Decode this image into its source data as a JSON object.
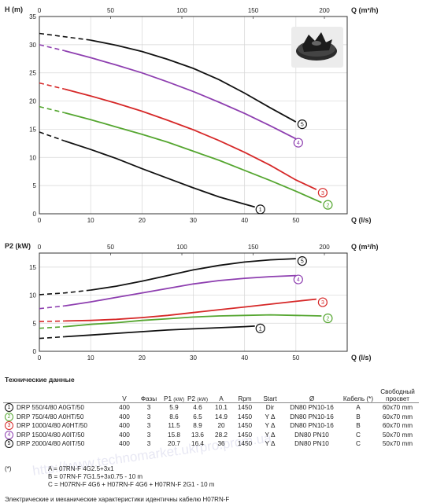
{
  "chart_data": [
    {
      "type": "line",
      "title": "",
      "ylabel": "H (m)",
      "xlabel": "Q (l/s)",
      "x2label": "Q (m³/h)",
      "xlim": [
        0,
        60
      ],
      "ylim": [
        0,
        35
      ],
      "x_ticks": [
        0,
        10,
        20,
        30,
        40,
        50
      ],
      "x2_ticks": [
        0,
        50,
        100,
        150,
        200
      ],
      "y_ticks": [
        0,
        5,
        10,
        15,
        20,
        25,
        30,
        35
      ],
      "grid": true,
      "series": [
        {
          "name": "1",
          "color": "#111111",
          "dashed_until": 1.5,
          "x": [
            0,
            5,
            10,
            15,
            20,
            25,
            30,
            35,
            40,
            42
          ],
          "y": [
            14.5,
            12.9,
            11.4,
            9.8,
            8.0,
            6.3,
            4.6,
            3.0,
            1.7,
            1.2
          ]
        },
        {
          "name": "2",
          "color": "#55a630",
          "dashed_until": 1.5,
          "x": [
            0,
            5,
            10,
            15,
            20,
            25,
            30,
            35,
            40,
            45,
            50,
            55
          ],
          "y": [
            19.0,
            17.9,
            16.7,
            15.4,
            14.1,
            12.7,
            11.1,
            9.5,
            7.7,
            5.9,
            4.0,
            2.0
          ]
        },
        {
          "name": "3",
          "color": "#d62828",
          "dashed_until": 1.5,
          "x": [
            0,
            5,
            10,
            15,
            20,
            25,
            30,
            35,
            40,
            45,
            50,
            54
          ],
          "y": [
            23.2,
            22.1,
            20.9,
            19.6,
            18.2,
            16.6,
            14.9,
            13.0,
            10.9,
            8.6,
            6.0,
            4.3
          ]
        },
        {
          "name": "4",
          "color": "#8e3fb0",
          "dashed_until": 3,
          "x": [
            0,
            5,
            10,
            15,
            20,
            25,
            30,
            35,
            40,
            45,
            50
          ],
          "y": [
            30.0,
            28.9,
            27.7,
            26.4,
            25.0,
            23.4,
            21.7,
            19.8,
            17.8,
            15.6,
            13.3
          ]
        },
        {
          "name": "5",
          "color": "#111111",
          "dashed_until": 5,
          "x": [
            0,
            5,
            10,
            15,
            20,
            25,
            30,
            35,
            40,
            45,
            50
          ],
          "y": [
            32.0,
            31.4,
            30.8,
            29.9,
            28.8,
            27.4,
            25.8,
            23.8,
            21.4,
            18.8,
            16.3
          ]
        }
      ]
    },
    {
      "type": "line",
      "title": "",
      "ylabel": "P2 (kW)",
      "xlabel": "Q (l/s)",
      "x2label": "Q (m³/h)",
      "xlim": [
        0,
        60
      ],
      "ylim": [
        0,
        17.5
      ],
      "x_ticks": [
        0,
        10,
        20,
        30,
        40,
        50
      ],
      "x2_ticks": [
        0,
        50,
        100,
        150,
        200
      ],
      "y_ticks": [
        0,
        5,
        10,
        15
      ],
      "grid": true,
      "series": [
        {
          "name": "1",
          "color": "#111111",
          "dashed_until": 1.5,
          "x": [
            0,
            5,
            10,
            15,
            20,
            25,
            30,
            35,
            40,
            42
          ],
          "y": [
            2.3,
            2.6,
            2.9,
            3.2,
            3.5,
            3.8,
            4.0,
            4.2,
            4.4,
            4.5
          ]
        },
        {
          "name": "2",
          "color": "#55a630",
          "dashed_until": 1.5,
          "x": [
            0,
            5,
            10,
            15,
            20,
            25,
            30,
            35,
            40,
            45,
            50,
            55
          ],
          "y": [
            4.1,
            4.4,
            4.8,
            5.1,
            5.5,
            5.8,
            6.1,
            6.3,
            6.4,
            6.5,
            6.4,
            6.3
          ]
        },
        {
          "name": "3",
          "color": "#d62828",
          "dashed_until": 1.5,
          "x": [
            0,
            5,
            10,
            15,
            20,
            25,
            30,
            35,
            40,
            45,
            50,
            54
          ],
          "y": [
            5.3,
            5.4,
            5.5,
            5.7,
            6.0,
            6.4,
            6.9,
            7.4,
            7.9,
            8.4,
            8.9,
            9.3
          ]
        },
        {
          "name": "4",
          "color": "#8e3fb0",
          "dashed_until": 3,
          "x": [
            0,
            5,
            10,
            15,
            20,
            25,
            30,
            35,
            40,
            45,
            50
          ],
          "y": [
            7.6,
            8.1,
            8.8,
            9.6,
            10.4,
            11.2,
            12.0,
            12.6,
            13.0,
            13.3,
            13.5
          ]
        },
        {
          "name": "5",
          "color": "#111111",
          "dashed_until": 5,
          "x": [
            0,
            5,
            10,
            15,
            20,
            25,
            30,
            35,
            40,
            45,
            50
          ],
          "y": [
            10.1,
            10.4,
            10.9,
            11.6,
            12.5,
            13.5,
            14.5,
            15.3,
            15.9,
            16.3,
            16.5
          ]
        }
      ]
    }
  ],
  "table": {
    "title": "Технические данные",
    "headers": {
      "v": "V",
      "phases": "Фазы",
      "p1": "P1",
      "p1_unit": "(kW)",
      "p2": "P2",
      "p2_unit": "(kW)",
      "a": "A",
      "rpm": "Rpm",
      "start": "Start",
      "dn": "Ø",
      "cable": "Кабель (*)",
      "opening": "Свободный просвет"
    },
    "rows": [
      {
        "num": "1",
        "color": "#111111",
        "model": "DRP 550/4/80 A0GT/50",
        "v": "400",
        "phases": "3",
        "p1": "5.9",
        "p2": "4.6",
        "a": "10.1",
        "rpm": "1450",
        "start": "Dir",
        "dn": "DN80 PN10-16",
        "cable": "A",
        "opening": "60x70 mm"
      },
      {
        "num": "2",
        "color": "#55a630",
        "model": "DRP 750/4/80 A0HT/50",
        "v": "400",
        "phases": "3",
        "p1": "8.6",
        "p2": "6.5",
        "a": "14.9",
        "rpm": "1450",
        "start": "Y Δ",
        "dn": "DN80 PN10-16",
        "cable": "B",
        "opening": "60x70 mm"
      },
      {
        "num": "3",
        "color": "#d62828",
        "model": "DRP 1000/4/80 A0HT/50",
        "v": "400",
        "phases": "3",
        "p1": "11.5",
        "p2": "8.9",
        "a": "20",
        "rpm": "1450",
        "start": "Y Δ",
        "dn": "DN80 PN10-16",
        "cable": "B",
        "opening": "60x70 mm"
      },
      {
        "num": "4",
        "color": "#8e3fb0",
        "model": "DRP 1500/4/80 A0IT/50",
        "v": "400",
        "phases": "3",
        "p1": "15.8",
        "p2": "13.6",
        "a": "28.2",
        "rpm": "1450",
        "start": "Y Δ",
        "dn": "DN80 PN10",
        "cable": "C",
        "opening": "50x70 mm"
      },
      {
        "num": "5",
        "color": "#111111",
        "model": "DRP 2000/4/80 A0IT/50",
        "v": "400",
        "phases": "3",
        "p1": "20.7",
        "p2": "16.4",
        "a": "36",
        "rpm": "1450",
        "start": "Y Δ",
        "dn": "DN80 PN10",
        "cable": "C",
        "opening": "50x70 mm"
      }
    ]
  },
  "notes": {
    "star": "(*)",
    "a": "A = 07RN-F 4G2.5+3x1",
    "b": "B = 07RN-F 7G1.5+3x0.75 - 10 m",
    "c": "C = H07RN-F 4G6 + H07RN-F 4G6 + H07RN-F 2G1 - 10 m",
    "footer": "Электрические и механические характеристики идентичны кабелю H07RN-F"
  },
  "watermark": "http://www.technomarket.ukrpro.prom.ua"
}
